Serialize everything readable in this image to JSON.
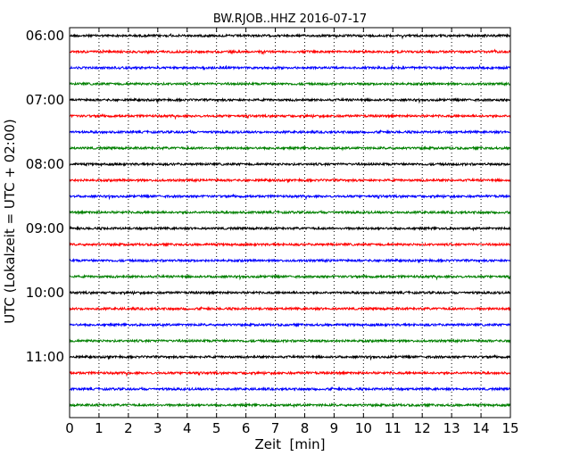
{
  "chart_data": {
    "type": "line",
    "subtype": "dayplot",
    "title": "BW.RJOB..HHZ 2016-07-17",
    "xlabel": "Zeit  [min]",
    "ylabel": "UTC (Lokalzeit = UTC + 02:00)",
    "xlim": [
      0,
      15
    ],
    "x_ticks": [
      "0",
      "1",
      "2",
      "3",
      "4",
      "5",
      "6",
      "7",
      "8",
      "9",
      "10",
      "11",
      "12",
      "13",
      "14",
      "15"
    ],
    "y_ticks": [
      "06:00",
      "07:00",
      "08:00",
      "09:00",
      "10:00",
      "11:00"
    ],
    "row_interval_min": 15,
    "rows": [
      "06:00",
      "06:15",
      "06:30",
      "06:45",
      "07:00",
      "07:15",
      "07:30",
      "07:45",
      "08:00",
      "08:15",
      "08:30",
      "08:45",
      "09:00",
      "09:15",
      "09:30",
      "09:45",
      "10:00",
      "10:15",
      "10:30",
      "10:45",
      "11:00",
      "11:15",
      "11:30",
      "11:45"
    ],
    "color_cycle": [
      "#000000",
      "#ff0000",
      "#0000ff",
      "#008000"
    ],
    "grid": "vertical-dotted"
  }
}
